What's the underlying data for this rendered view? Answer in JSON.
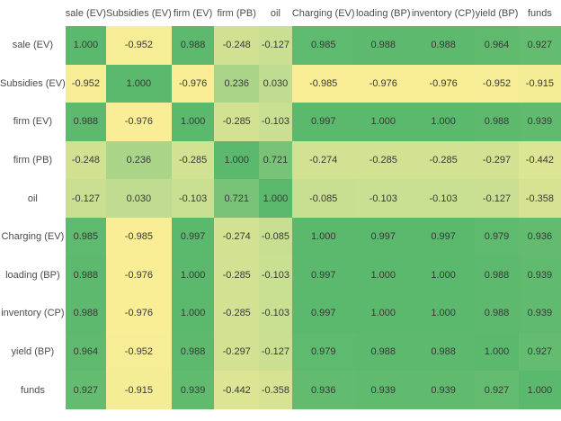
{
  "chart_data": {
    "type": "heatmap",
    "title": "",
    "description": "correlation matrix heatmap",
    "labels": [
      "sale (EV)",
      "Subsidies (EV)",
      "firm (EV)",
      "firm (PB)",
      "oil",
      "Charging (EV)",
      "loading (BP)",
      "inventory (CP)",
      "yield (BP)",
      "funds"
    ],
    "matrix": [
      [
        1.0,
        -0.952,
        0.988,
        -0.248,
        -0.127,
        0.985,
        0.988,
        0.988,
        0.964,
        0.927
      ],
      [
        -0.952,
        1.0,
        -0.976,
        0.236,
        0.03,
        -0.985,
        -0.976,
        -0.976,
        -0.952,
        -0.915
      ],
      [
        0.988,
        -0.976,
        1.0,
        -0.285,
        -0.103,
        0.997,
        1.0,
        1.0,
        0.988,
        0.939
      ],
      [
        -0.248,
        0.236,
        -0.285,
        1.0,
        0.721,
        -0.274,
        -0.285,
        -0.285,
        -0.297,
        -0.442
      ],
      [
        -0.127,
        0.03,
        -0.103,
        0.721,
        1.0,
        -0.085,
        -0.103,
        -0.103,
        -0.127,
        -0.358
      ],
      [
        0.985,
        -0.985,
        0.997,
        -0.274,
        -0.085,
        1.0,
        0.997,
        0.997,
        0.979,
        0.936
      ],
      [
        0.988,
        -0.976,
        1.0,
        -0.285,
        -0.103,
        0.997,
        1.0,
        1.0,
        0.988,
        0.939
      ],
      [
        0.988,
        -0.976,
        1.0,
        -0.285,
        -0.103,
        0.997,
        1.0,
        1.0,
        0.988,
        0.939
      ],
      [
        0.964,
        -0.952,
        0.988,
        -0.297,
        -0.127,
        0.979,
        0.988,
        0.988,
        1.0,
        0.927
      ],
      [
        0.927,
        -0.915,
        0.939,
        -0.442,
        -0.358,
        0.936,
        0.939,
        0.939,
        0.927,
        1.0
      ]
    ],
    "value_range": [
      -1,
      1
    ],
    "value_decimals": 3,
    "grid": false,
    "legend": "none",
    "colormap": {
      "negative_end": "#faee96",
      "zero_mid": "#c3dd91",
      "positive_end": "#5bb96d"
    },
    "cell_text_color": "#383838",
    "label_text_color": "#4c4c4c",
    "background_color": "#ffffff"
  }
}
